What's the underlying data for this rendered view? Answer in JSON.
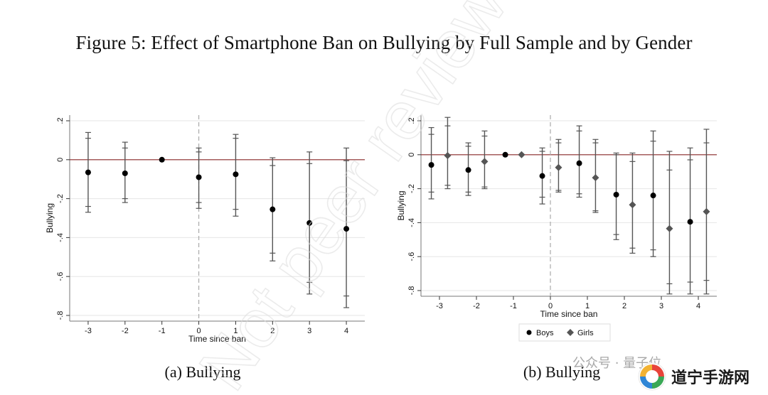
{
  "figure_title": "Figure 5: Effect of Smartphone Ban on Bullying by Full Sample and by Gender",
  "captions": {
    "a": "(a) Bullying",
    "b": "(b) Bullying"
  },
  "watermark_text": "Not peer reviewed",
  "social_mark": "公众号 · 量子位",
  "brand": {
    "name": "道宁手游网",
    "logo_icon": "swirl-logo-icon"
  },
  "colors": {
    "zero_line": "#8b2a2a",
    "ci": "#555555",
    "point_boys": "#000000",
    "point_girls": "#555555",
    "gridline": "#e6e6e6",
    "event_line": "#aaaaaa",
    "plot_border": "#777777",
    "watermark": "#dcdcdc"
  },
  "chart_data": [
    {
      "type": "scatter",
      "panel": "a",
      "ylabel": "Bullying",
      "xlabel": "Time since ban",
      "x": [
        -3,
        -2,
        -1,
        0,
        1,
        2,
        3,
        4
      ],
      "xlim": [
        -3.5,
        4.5
      ],
      "ylim": [
        -0.8,
        0.2
      ],
      "yticks": [
        0.2,
        0,
        -0.2,
        -0.4,
        -0.6,
        -0.8
      ],
      "ytick_labels": [
        ".2",
        "0",
        "-.2",
        "-.4",
        "-.6",
        "-.8"
      ],
      "xtick_labels": [
        "-3",
        "-2",
        "-1",
        "0",
        "1",
        "2",
        "3",
        "4"
      ],
      "event_x": 0,
      "grid": true,
      "series": [
        {
          "marker": "circle",
          "x": [
            -3,
            -2,
            -1,
            0,
            1,
            2,
            3,
            4
          ],
          "y": [
            -0.065,
            -0.07,
            0.0,
            -0.09,
            -0.075,
            -0.255,
            -0.325,
            -0.355
          ],
          "ci90_low": [
            -0.24,
            -0.2,
            0.0,
            -0.22,
            -0.255,
            -0.48,
            -0.63,
            -0.7
          ],
          "ci90_high": [
            0.11,
            0.06,
            0.0,
            0.04,
            0.11,
            -0.03,
            -0.02,
            -0.005
          ],
          "ci95_low": [
            -0.27,
            -0.22,
            0.0,
            -0.25,
            -0.29,
            -0.52,
            -0.69,
            -0.76
          ],
          "ci95_high": [
            0.14,
            0.09,
            0.0,
            0.06,
            0.13,
            0.01,
            0.04,
            0.06
          ]
        }
      ]
    },
    {
      "type": "scatter",
      "panel": "b",
      "ylabel": "Bullying",
      "xlabel": "Time since ban",
      "x": [
        -3,
        -2,
        -1,
        0,
        1,
        2,
        3,
        4
      ],
      "xlim": [
        -3.5,
        4.5
      ],
      "ylim": [
        -0.8,
        0.2
      ],
      "yticks": [
        0.2,
        0,
        -0.2,
        -0.4,
        -0.6,
        -0.8
      ],
      "ytick_labels": [
        ".2",
        "0",
        "-.2",
        "-.4",
        "-.6",
        "-.8"
      ],
      "xtick_labels": [
        "-3",
        "-2",
        "-1",
        "0",
        "1",
        "2",
        "3",
        "4"
      ],
      "event_x": 0,
      "grid": true,
      "legend_position": "bottom",
      "series": [
        {
          "name": "Boys",
          "marker": "circle",
          "x": [
            -3,
            -2,
            -1,
            0,
            1,
            2,
            3,
            4
          ],
          "y": [
            -0.06,
            -0.09,
            0.0,
            -0.125,
            -0.05,
            -0.235,
            -0.24,
            -0.395
          ],
          "ci90_low": [
            -0.22,
            -0.22,
            0.0,
            -0.25,
            -0.23,
            -0.47,
            -0.56,
            -0.75
          ],
          "ci90_high": [
            0.12,
            0.05,
            0.0,
            0.02,
            0.14,
            0.0,
            0.08,
            -0.03
          ],
          "ci95_low": [
            -0.26,
            -0.24,
            0.0,
            -0.29,
            -0.25,
            -0.5,
            -0.6,
            -0.82
          ],
          "ci95_high": [
            0.16,
            0.07,
            0.0,
            0.04,
            0.17,
            0.01,
            0.14,
            0.04
          ]
        },
        {
          "name": "Girls",
          "marker": "diamond",
          "x": [
            -3,
            -2,
            -1,
            0,
            1,
            2,
            3,
            4
          ],
          "y": [
            -0.005,
            -0.04,
            0.0,
            -0.075,
            -0.135,
            -0.295,
            -0.435,
            -0.335
          ],
          "ci90_low": [
            -0.18,
            -0.19,
            0.0,
            -0.21,
            -0.33,
            -0.55,
            -0.76,
            -0.74
          ],
          "ci90_high": [
            0.17,
            0.11,
            0.0,
            0.07,
            0.07,
            -0.04,
            -0.09,
            0.07
          ],
          "ci95_low": [
            -0.2,
            -0.2,
            0.0,
            -0.22,
            -0.34,
            -0.58,
            -0.82,
            -0.82
          ],
          "ci95_high": [
            0.22,
            0.14,
            0.0,
            0.09,
            0.09,
            0.01,
            0.02,
            0.15
          ]
        }
      ]
    }
  ]
}
